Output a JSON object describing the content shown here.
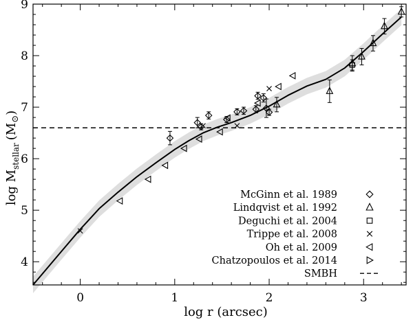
{
  "chart_data": {
    "type": "scatter",
    "title": "",
    "xlabel": "log r (arcsec)",
    "ylabel_parts": {
      "main": "log M",
      "sub": "stellar",
      "unit_open": "(M",
      "unit_sym": "⊙",
      "unit_close": ")"
    },
    "xlim": [
      -0.5,
      3.45
    ],
    "ylim": [
      3.55,
      9.0
    ],
    "x_ticks": [
      0,
      1,
      2,
      3
    ],
    "y_ticks": [
      4,
      5,
      6,
      7,
      8,
      9
    ],
    "grid": false,
    "legend_position": "bottom-right",
    "smbh_level": 6.6,
    "model_curve": {
      "x": [
        -0.5,
        -0.2,
        0,
        0.2,
        0.4,
        0.6,
        0.8,
        1.0,
        1.15,
        1.3,
        1.45,
        1.6,
        1.8,
        2.0,
        2.2,
        2.4,
        2.6,
        2.8,
        3.0,
        3.2,
        3.4
      ],
      "y": [
        3.55,
        4.2,
        4.63,
        5.03,
        5.35,
        5.65,
        5.92,
        6.18,
        6.35,
        6.5,
        6.61,
        6.7,
        6.84,
        7.02,
        7.23,
        7.41,
        7.54,
        7.76,
        8.08,
        8.42,
        8.75
      ],
      "band_halfwidth": 0.16
    },
    "series": [
      {
        "name": "McGinn et al. 1989",
        "marker": "diamond",
        "points": [
          {
            "x": 0.95,
            "y": 6.4,
            "err": 0.13
          },
          {
            "x": 1.24,
            "y": 6.7,
            "err": 0.1
          },
          {
            "x": 1.28,
            "y": 6.62,
            "err": 0.06
          },
          {
            "x": 1.36,
            "y": 6.84,
            "err": 0.07
          },
          {
            "x": 1.55,
            "y": 6.76,
            "err": 0.06
          },
          {
            "x": 1.66,
            "y": 6.91,
            "err": 0.06
          },
          {
            "x": 1.73,
            "y": 6.93,
            "err": 0.07
          },
          {
            "x": 1.86,
            "y": 6.96,
            "err": 0.07
          },
          {
            "x": 1.88,
            "y": 7.22,
            "err": 0.07
          },
          {
            "x": 1.94,
            "y": 7.18,
            "err": 0.08
          },
          {
            "x": 1.97,
            "y": 6.98,
            "err": 0.18
          },
          {
            "x": 2.0,
            "y": 6.9,
            "err": 0.06
          }
        ]
      },
      {
        "name": "Lindqvist et al. 1992",
        "marker": "triangle-up",
        "points": [
          {
            "x": 2.08,
            "y": 7.05,
            "err": 0.14
          },
          {
            "x": 2.64,
            "y": 7.31,
            "err": 0.22
          },
          {
            "x": 2.88,
            "y": 7.85,
            "err": 0.15
          },
          {
            "x": 2.98,
            "y": 7.98,
            "err": 0.16
          },
          {
            "x": 3.1,
            "y": 8.24,
            "err": 0.15
          },
          {
            "x": 3.22,
            "y": 8.57,
            "err": 0.15
          },
          {
            "x": 3.4,
            "y": 8.85,
            "err": 0.1
          }
        ]
      },
      {
        "name": "Deguchi et al. 2004",
        "marker": "square",
        "points": [
          {
            "x": 2.88,
            "y": 7.82,
            "err": 0.1
          }
        ]
      },
      {
        "name": "Trippe et al. 2008",
        "marker": "x",
        "points": [
          {
            "x": 0,
            "y": 4.6,
            "err": 0
          },
          {
            "x": 1.3,
            "y": 6.64,
            "err": 0
          },
          {
            "x": 1.66,
            "y": 6.64,
            "err": 0
          },
          {
            "x": 2.0,
            "y": 7.36,
            "err": 0
          }
        ]
      },
      {
        "name": "Oh et al. 2009",
        "marker": "triangle-left",
        "points": [
          {
            "x": 0.42,
            "y": 5.18,
            "err": 0
          },
          {
            "x": 0.72,
            "y": 5.6,
            "err": 0
          },
          {
            "x": 0.9,
            "y": 5.87,
            "err": 0
          },
          {
            "x": 1.1,
            "y": 6.2,
            "err": 0
          },
          {
            "x": 1.26,
            "y": 6.38,
            "err": 0
          },
          {
            "x": 1.48,
            "y": 6.52,
            "err": 0
          },
          {
            "x": 1.56,
            "y": 6.79,
            "err": 0
          },
          {
            "x": 1.88,
            "y": 7.08,
            "err": 0
          },
          {
            "x": 2.1,
            "y": 7.4,
            "err": 0
          },
          {
            "x": 2.25,
            "y": 7.61,
            "err": 0
          }
        ]
      },
      {
        "name": "Chatzopoulos et al. 2014",
        "marker": "triangle-right",
        "points": []
      },
      {
        "name": "SMBH",
        "marker": "dashed-line",
        "points": []
      }
    ]
  }
}
